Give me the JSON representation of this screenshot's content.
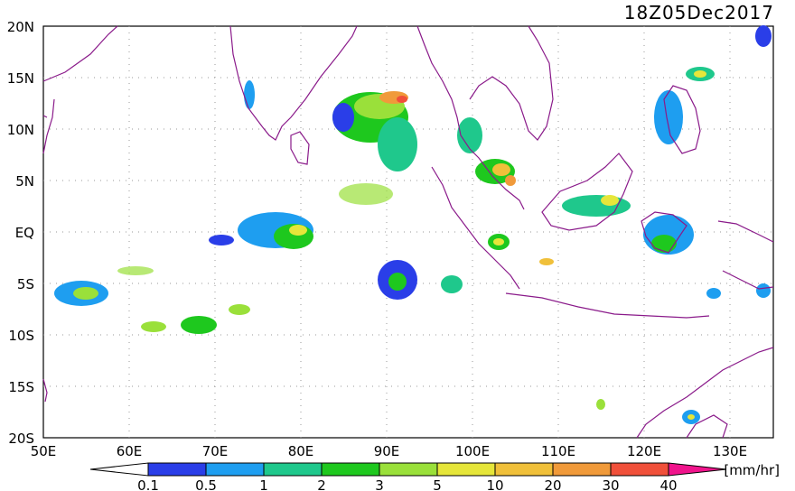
{
  "title": "18Z05Dec2017",
  "lat_labels": [
    "20N",
    "15N",
    "10N",
    "5N",
    "EQ",
    "5S",
    "10S",
    "15S",
    "20S"
  ],
  "lon_labels": [
    "50E",
    "60E",
    "70E",
    "80E",
    "90E",
    "100E",
    "110E",
    "120E",
    "130E"
  ],
  "colorbar": {
    "unit": "[mm/hr]",
    "ticks": [
      "0.1",
      "0.5",
      "1",
      "2",
      "3",
      "5",
      "10",
      "20",
      "30",
      "40"
    ],
    "colors": [
      "#2a3ee8",
      "#1e9ef0",
      "#1fc88c",
      "#1ec81e",
      "#9ae03a",
      "#e6e63a",
      "#f0c03a",
      "#f09a3a",
      "#f0503a"
    ],
    "below_color": "#ffffff",
    "above_color": "#f0148c"
  }
}
